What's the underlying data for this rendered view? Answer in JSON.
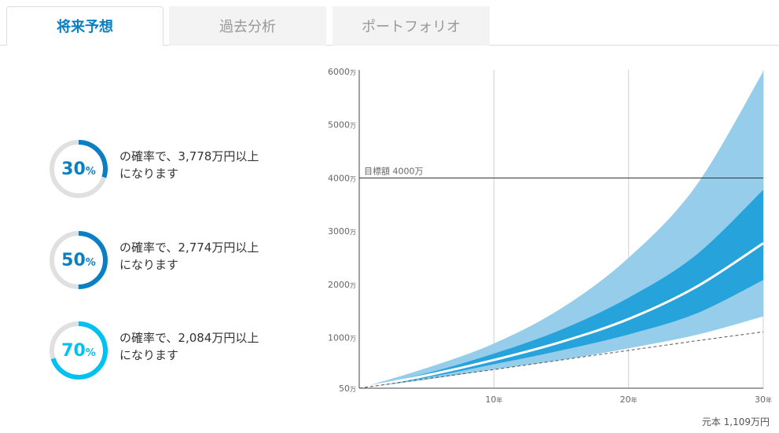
{
  "tabs": [
    {
      "label": "将来予想",
      "active": true
    },
    {
      "label": "過去分析",
      "active": false
    },
    {
      "label": "ポートフォリオ",
      "active": false
    }
  ],
  "probabilities": [
    {
      "pct": "30",
      "unit": "%",
      "fraction": 0.3,
      "color": "#0a7fc2",
      "line1": "の確率で、3,778万円以上",
      "line2": "になります"
    },
    {
      "pct": "50",
      "unit": "%",
      "fraction": 0.5,
      "color": "#0a7fc2",
      "line1": "の確率で、2,774万円以上",
      "line2": "になります"
    },
    {
      "pct": "70",
      "unit": "%",
      "fraction": 0.7,
      "color": "#00c2f0",
      "line1": "の確率で、2,084万円以上",
      "line2": "になります"
    }
  ],
  "chart_data": {
    "type": "area",
    "x_range": [
      0,
      30
    ],
    "y_range": [
      50,
      6000
    ],
    "y_ticks": [
      {
        "value": 50,
        "label": "50",
        "unit": "万"
      },
      {
        "value": 1000,
        "label": "1000",
        "unit": "万"
      },
      {
        "value": 2000,
        "label": "2000",
        "unit": "万"
      },
      {
        "value": 3000,
        "label": "3000",
        "unit": "万"
      },
      {
        "value": 4000,
        "label": "4000",
        "unit": "万"
      },
      {
        "value": 5000,
        "label": "5000",
        "unit": "万"
      },
      {
        "value": 6000,
        "label": "6000",
        "unit": "万"
      }
    ],
    "x_ticks": [
      {
        "value": 10,
        "label": "10",
        "unit": "年"
      },
      {
        "value": 20,
        "label": "20",
        "unit": "年"
      },
      {
        "value": 30,
        "label": "30",
        "unit": "年"
      }
    ],
    "x": [
      0,
      5,
      10,
      15,
      20,
      25,
      30
    ],
    "outer_upper": [
      50,
      430,
      890,
      1550,
      2500,
      3850,
      6000
    ],
    "inner_upper": [
      50,
      330,
      700,
      1150,
      1750,
      2550,
      3778
    ],
    "median": [
      50,
      290,
      580,
      920,
      1350,
      1950,
      2774
    ],
    "inner_lower": [
      50,
      250,
      500,
      760,
      1060,
      1450,
      2084
    ],
    "outer_lower": [
      50,
      210,
      400,
      580,
      800,
      1050,
      1400
    ],
    "principal": [
      50,
      230,
      400,
      580,
      760,
      940,
      1109
    ],
    "target": {
      "value": 4000,
      "label": "目標額 4000万"
    },
    "principal_label": "元本 1,109万円",
    "colors": {
      "outer": "#96cdea",
      "inner": "#27a3dc",
      "median": "#ffffff",
      "principal": "#555555",
      "target": "#333333",
      "grid": "#d0d0d0"
    }
  }
}
